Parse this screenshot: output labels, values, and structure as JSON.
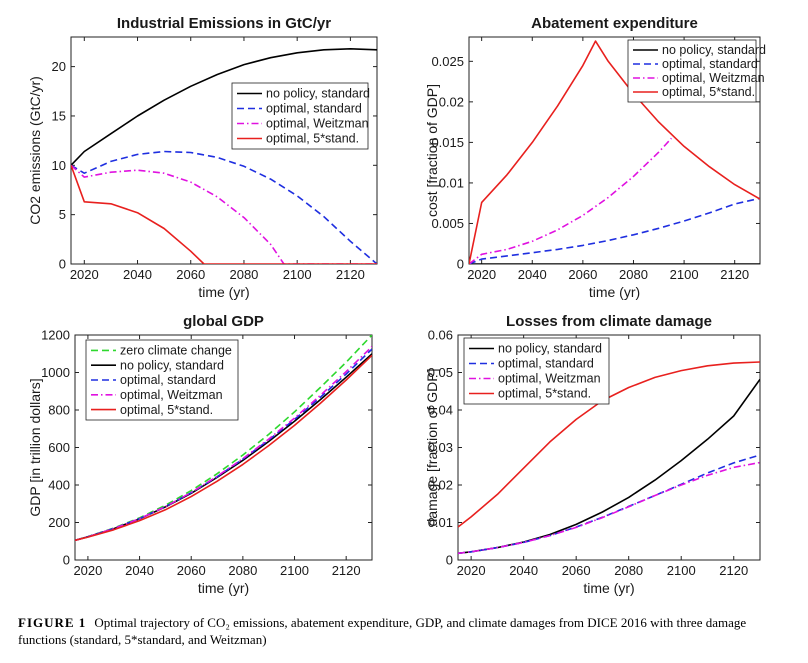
{
  "chart_data": [
    {
      "type": "line",
      "title": "Industrial Emissions in GtC/yr",
      "xlabel": "time (yr)",
      "ylabel": "CO2 emissions (GtC/yr)",
      "xlim": [
        2015,
        2130
      ],
      "ylim": [
        0,
        23
      ],
      "xticks": [
        2020,
        2040,
        2060,
        2080,
        2100,
        2120
      ],
      "yticks": [
        0,
        5,
        10,
        15,
        20
      ],
      "ytick_labels": [
        "0",
        "5",
        "10",
        "15",
        "20"
      ],
      "legend_position": "right",
      "series": [
        {
          "name": "no policy, standard",
          "color": "#000000",
          "dash": "solid",
          "x": [
            2015,
            2020,
            2030,
            2040,
            2050,
            2060,
            2070,
            2080,
            2090,
            2100,
            2110,
            2120,
            2130
          ],
          "y": [
            10.0,
            11.4,
            13.2,
            15.0,
            16.6,
            18.0,
            19.2,
            20.2,
            20.9,
            21.4,
            21.7,
            21.8,
            21.7
          ]
        },
        {
          "name": "optimal, standard",
          "color": "#1f2fe0",
          "dash": "dash",
          "x": [
            2015,
            2020,
            2030,
            2040,
            2050,
            2060,
            2070,
            2080,
            2090,
            2100,
            2110,
            2120,
            2130
          ],
          "y": [
            10.0,
            9.2,
            10.4,
            11.1,
            11.4,
            11.3,
            10.8,
            9.9,
            8.6,
            6.9,
            4.8,
            2.3,
            0.0
          ]
        },
        {
          "name": "optimal, Weitzman",
          "color": "#e012e0",
          "dash": "dashdot",
          "x": [
            2015,
            2020,
            2030,
            2040,
            2050,
            2060,
            2070,
            2080,
            2090,
            2095,
            2130
          ],
          "y": [
            10.0,
            8.8,
            9.3,
            9.5,
            9.2,
            8.3,
            6.8,
            4.7,
            2.0,
            0.0,
            0.0
          ]
        },
        {
          "name": "optimal, 5*stand.",
          "color": "#e8201e",
          "dash": "solid",
          "x": [
            2015,
            2020,
            2030,
            2040,
            2050,
            2060,
            2065,
            2130
          ],
          "y": [
            10.0,
            6.3,
            6.1,
            5.2,
            3.6,
            1.3,
            0.0,
            0.0
          ]
        }
      ]
    },
    {
      "type": "line",
      "title": "Abatement expenditure",
      "xlabel": "time (yr)",
      "ylabel": "cost  [fraction of GDP]",
      "xlim": [
        2015,
        2130
      ],
      "ylim": [
        0,
        0.028
      ],
      "xticks": [
        2020,
        2040,
        2060,
        2080,
        2100,
        2120
      ],
      "yticks": [
        0,
        0.005,
        0.01,
        0.015,
        0.02,
        0.025
      ],
      "ytick_labels": [
        "0",
        "0.005",
        "0.01",
        "0.015",
        "0.02",
        "0.025"
      ],
      "legend_position": "top-right",
      "series": [
        {
          "name": "no policy, standard",
          "color": "#000000",
          "dash": "solid",
          "x": [
            2015,
            2130
          ],
          "y": [
            0.0,
            0.0
          ]
        },
        {
          "name": "optimal, standard",
          "color": "#1f2fe0",
          "dash": "dash",
          "x": [
            2015,
            2020,
            2030,
            2040,
            2050,
            2060,
            2070,
            2080,
            2090,
            2100,
            2110,
            2120,
            2130
          ],
          "y": [
            0.0,
            0.0006,
            0.001,
            0.0014,
            0.0018,
            0.0023,
            0.0029,
            0.0036,
            0.0044,
            0.0053,
            0.0063,
            0.0074,
            0.0081
          ]
        },
        {
          "name": "optimal, Weitzman",
          "color": "#e012e0",
          "dash": "dashdot",
          "x": [
            2015,
            2020,
            2030,
            2040,
            2050,
            2060,
            2070,
            2080,
            2090,
            2095
          ],
          "y": [
            0.0,
            0.0012,
            0.0018,
            0.0028,
            0.0042,
            0.006,
            0.0082,
            0.0108,
            0.0138,
            0.0155
          ]
        },
        {
          "name": "optimal, 5*stand.",
          "color": "#e8201e",
          "dash": "solid",
          "x": [
            2015,
            2020,
            2030,
            2040,
            2050,
            2060,
            2065,
            2070,
            2080,
            2090,
            2100,
            2110,
            2120,
            2130
          ],
          "y": [
            0.0,
            0.0076,
            0.011,
            0.015,
            0.0195,
            0.0245,
            0.0275,
            0.025,
            0.021,
            0.0175,
            0.0145,
            0.012,
            0.0098,
            0.008
          ]
        }
      ]
    },
    {
      "type": "line",
      "title": "global GDP",
      "xlabel": "time (yr)",
      "ylabel": "GDP [in trillion dollars]",
      "xlim": [
        2015,
        2130
      ],
      "ylim": [
        0,
        1200
      ],
      "xticks": [
        2020,
        2040,
        2060,
        2080,
        2100,
        2120
      ],
      "yticks": [
        0,
        200,
        400,
        600,
        800,
        1000,
        1200
      ],
      "ytick_labels": [
        "0",
        "200",
        "400",
        "600",
        "800",
        "1000",
        "1200"
      ],
      "legend_position": "top-left",
      "series": [
        {
          "name": "zero climate change",
          "color": "#2ed82e",
          "dash": "dash",
          "x": [
            2015,
            2020,
            2030,
            2040,
            2050,
            2060,
            2070,
            2080,
            2090,
            2100,
            2110,
            2120,
            2130
          ],
          "y": [
            105,
            125,
            170,
            225,
            292,
            370,
            460,
            560,
            670,
            790,
            920,
            1055,
            1200
          ]
        },
        {
          "name": "no policy, standard",
          "color": "#000000",
          "dash": "solid",
          "x": [
            2015,
            2020,
            2030,
            2040,
            2050,
            2060,
            2070,
            2080,
            2090,
            2100,
            2110,
            2120,
            2130
          ],
          "y": [
            105,
            124,
            167,
            220,
            283,
            356,
            440,
            532,
            632,
            740,
            855,
            975,
            1100
          ]
        },
        {
          "name": "optimal, standard",
          "color": "#1f2fe0",
          "dash": "dash",
          "x": [
            2015,
            2020,
            2030,
            2040,
            2050,
            2060,
            2070,
            2080,
            2090,
            2100,
            2110,
            2120,
            2130
          ],
          "y": [
            105,
            124,
            168,
            221,
            285,
            359,
            444,
            538,
            640,
            750,
            868,
            992,
            1125
          ]
        },
        {
          "name": "optimal, Weitzman",
          "color": "#e012e0",
          "dash": "dashdot",
          "x": [
            2015,
            2020,
            2030,
            2040,
            2050,
            2060,
            2070,
            2080,
            2090,
            2100,
            2110,
            2120,
            2130
          ],
          "y": [
            105,
            124,
            167,
            221,
            285,
            360,
            446,
            541,
            645,
            757,
            878,
            1005,
            1138
          ]
        },
        {
          "name": "optimal, 5*stand.",
          "color": "#e8201e",
          "dash": "solid",
          "x": [
            2015,
            2020,
            2030,
            2040,
            2050,
            2060,
            2070,
            2080,
            2090,
            2100,
            2110,
            2120,
            2130
          ],
          "y": [
            105,
            122,
            161,
            210,
            268,
            338,
            420,
            510,
            610,
            718,
            835,
            960,
            1092
          ]
        }
      ]
    },
    {
      "type": "line",
      "title": "Losses from climate damage",
      "xlabel": "time (yr)",
      "ylabel": "damage  [fraction of GDP]",
      "xlim": [
        2015,
        2130
      ],
      "ylim": [
        0,
        0.06
      ],
      "xticks": [
        2020,
        2040,
        2060,
        2080,
        2100,
        2120
      ],
      "yticks": [
        0,
        0.01,
        0.02,
        0.03,
        0.04,
        0.05,
        0.06
      ],
      "ytick_labels": [
        "0",
        "0.01",
        "0.02",
        "0.03",
        "0.04",
        "0.05",
        "0.06"
      ],
      "legend_position": "top-left",
      "series": [
        {
          "name": "no policy, standard",
          "color": "#000000",
          "dash": "solid",
          "x": [
            2015,
            2020,
            2030,
            2040,
            2050,
            2060,
            2070,
            2080,
            2090,
            2100,
            2110,
            2120,
            2130
          ],
          "y": [
            0.0018,
            0.0022,
            0.0033,
            0.0048,
            0.0068,
            0.0095,
            0.0128,
            0.0167,
            0.0213,
            0.0265,
            0.0322,
            0.0384,
            0.0482
          ]
        },
        {
          "name": "optimal, standard",
          "color": "#1f2fe0",
          "dash": "dash",
          "x": [
            2015,
            2020,
            2030,
            2040,
            2050,
            2060,
            2070,
            2080,
            2090,
            2100,
            2110,
            2120,
            2130
          ],
          "y": [
            0.0018,
            0.0022,
            0.0033,
            0.0047,
            0.0065,
            0.0088,
            0.0114,
            0.0143,
            0.0172,
            0.0202,
            0.0232,
            0.0259,
            0.028
          ]
        },
        {
          "name": "optimal, Weitzman",
          "color": "#e012e0",
          "dash": "dashdot",
          "x": [
            2015,
            2020,
            2030,
            2040,
            2050,
            2060,
            2070,
            2080,
            2090,
            2100,
            2110,
            2120,
            2130
          ],
          "y": [
            0.0018,
            0.0022,
            0.0033,
            0.0047,
            0.0065,
            0.0087,
            0.0113,
            0.0142,
            0.0172,
            0.02,
            0.0226,
            0.0247,
            0.026
          ]
        },
        {
          "name": "optimal, 5*stand.",
          "color": "#e8201e",
          "dash": "solid",
          "x": [
            2015,
            2020,
            2030,
            2040,
            2050,
            2060,
            2070,
            2080,
            2090,
            2100,
            2110,
            2120,
            2130
          ],
          "y": [
            0.0088,
            0.0115,
            0.0175,
            0.0245,
            0.0315,
            0.0375,
            0.0425,
            0.046,
            0.0487,
            0.0505,
            0.0518,
            0.0525,
            0.0528
          ]
        }
      ]
    }
  ],
  "caption": {
    "label": "FIGURE 1",
    "text": "Optimal trajectory of CO₂ emissions, abatement expenditure, GDP, and climate damages from DICE 2016 with three damage functions (standard, 5*standard, and Weitzman)"
  }
}
